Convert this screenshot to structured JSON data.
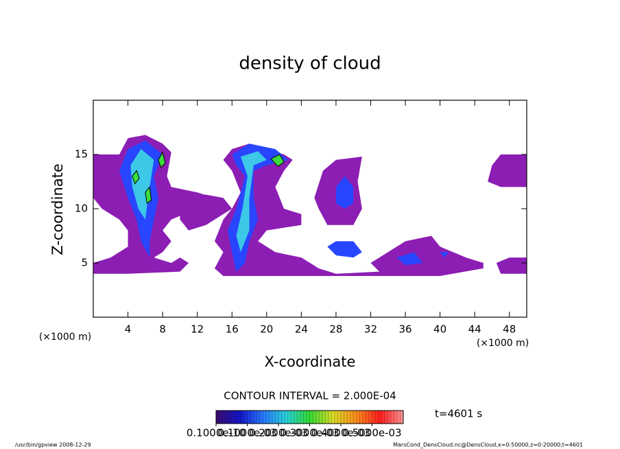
{
  "chart_data": {
    "type": "contour",
    "title": "density of cloud",
    "x_label": "X-coordinate",
    "y_label": "Z-coordinate",
    "x_unit": "(×1000 m)",
    "y_unit": "(×1000 m)",
    "xlim": [
      0,
      50
    ],
    "ylim": [
      0,
      20
    ],
    "xticks": [
      4,
      8,
      12,
      16,
      20,
      24,
      28,
      32,
      36,
      40,
      44,
      48
    ],
    "yticks": [
      5,
      10,
      15
    ],
    "contour_interval": "CONTOUR INTERVAL = 2.000E-04",
    "time": "t=4601 s",
    "colorbar": {
      "lim": [
        0,
        0.0006
      ],
      "colors": [
        "#3c0a6e",
        "#1414c8",
        "#2878ff",
        "#28d2dc",
        "#32dc32",
        "#dcdc28",
        "#ff8c1e",
        "#ff1e1e",
        "#ff9696"
      ],
      "ticks": [
        {
          "value": 1e-11,
          "label": "0.1000e-10"
        },
        {
          "value": 0.0001,
          "label": "0.1000e-03"
        },
        {
          "value": 0.0002,
          "label": "0.2000e-03"
        },
        {
          "value": 0.0003,
          "label": "0.3000e-03"
        },
        {
          "value": 0.0004,
          "label": "0.4000e-03"
        },
        {
          "value": 0.0005,
          "label": "0.5000e-03"
        }
      ]
    },
    "regions": [
      {
        "value": 5e-05,
        "color": "#8c1eb4",
        "x": [
          0,
          3,
          4,
          6,
          8,
          9,
          8.5,
          9,
          12,
          14,
          12,
          9,
          8,
          9,
          8,
          7,
          9,
          10,
          11,
          10,
          4,
          2,
          0,
          0,
          2,
          3,
          4,
          4,
          3,
          1,
          0
        ],
        "z": [
          15,
          15,
          16.5,
          16.8,
          16,
          15.2,
          13,
          12,
          11.5,
          11,
          10,
          9,
          8,
          7,
          6,
          5.5,
          5,
          5.5,
          5,
          4.2,
          4,
          4,
          4,
          5,
          5.5,
          6,
          6.5,
          8,
          9,
          10,
          11
        ]
      },
      {
        "value": 5e-05,
        "color": "#8c1eb4",
        "x": [
          10,
          13,
          15,
          16,
          13,
          11,
          10
        ],
        "z": [
          11,
          11.3,
          11,
          10,
          8.5,
          8,
          9
        ]
      },
      {
        "value": 5e-05,
        "color": "#8c1eb4",
        "x": [
          15,
          16,
          18,
          20,
          22,
          23,
          22,
          21,
          22,
          24,
          24,
          20,
          19,
          21,
          24,
          26,
          28,
          33,
          32,
          34,
          36,
          39,
          40,
          43,
          45,
          45,
          40,
          25,
          15,
          14,
          15,
          14,
          15,
          16,
          17,
          16
        ],
        "z": [
          14.5,
          15.5,
          16,
          15.5,
          15,
          14.5,
          13.5,
          12,
          10,
          9.5,
          8.5,
          8,
          7,
          6,
          5.5,
          4.5,
          4,
          4.2,
          5,
          6,
          7,
          7.5,
          6.5,
          5.5,
          5,
          4.5,
          3.8,
          3.8,
          3.8,
          4.5,
          6,
          7,
          9,
          10,
          11.5,
          13.5
        ]
      },
      {
        "value": 5e-05,
        "color": "#8c1eb4",
        "x": [
          26.5,
          28,
          31,
          30.5,
          31,
          30,
          27,
          26,
          25.5
        ],
        "z": [
          13.5,
          14.5,
          14.8,
          12.5,
          10,
          8.5,
          8.5,
          10,
          11
        ]
      },
      {
        "value": 5e-05,
        "color": "#8c1eb4",
        "x": [
          46,
          47,
          50,
          50,
          47,
          45.5
        ],
        "z": [
          14,
          15,
          15,
          12,
          12,
          12.5
        ]
      },
      {
        "value": 5e-05,
        "color": "#8c1eb4",
        "x": [
          47,
          50,
          50,
          48,
          46.5
        ],
        "z": [
          4,
          4,
          5.5,
          5.5,
          5
        ]
      },
      {
        "value": 0.00015,
        "color": "#2846ff",
        "x": [
          4,
          6,
          8,
          7,
          7.5,
          7,
          6.5,
          6.5,
          5.5,
          5,
          4,
          3
        ],
        "z": [
          15.5,
          16.3,
          15,
          13,
          11,
          9,
          7,
          5.5,
          7,
          9,
          11,
          13.5
        ]
      },
      {
        "value": 0.00015,
        "color": "#2846ff",
        "x": [
          16,
          18,
          21,
          22.5,
          20,
          18.5,
          18.5,
          19,
          18,
          17.5,
          16.5,
          16,
          15.5,
          16.5,
          17.5,
          16.5
        ],
        "z": [
          15,
          16,
          15.5,
          14.5,
          14,
          13.5,
          11,
          9,
          7,
          5,
          4.2,
          6,
          8,
          10,
          13,
          14
        ]
      },
      {
        "value": 0.00015,
        "color": "#2846ff",
        "x": [
          28,
          29,
          30,
          30,
          29,
          28
        ],
        "z": [
          12,
          13,
          12,
          10.5,
          10,
          10.5
        ]
      },
      {
        "value": 0.00015,
        "color": "#2846ff",
        "x": [
          27,
          28,
          30,
          31,
          30,
          28
        ],
        "z": [
          6.5,
          7,
          7,
          6,
          5.5,
          5.7
        ]
      },
      {
        "value": 0.00015,
        "color": "#2846ff",
        "x": [
          35,
          37,
          38,
          36
        ],
        "z": [
          5.5,
          6,
          5,
          4.8
        ]
      },
      {
        "value": 0.00015,
        "color": "#2846ff",
        "x": [
          40,
          41,
          40.5
        ],
        "z": [
          6,
          6,
          5.5
        ]
      },
      {
        "value": 0.00025,
        "color": "#3cc8e6",
        "x": [
          4.3,
          5.5,
          7,
          6.5,
          6,
          5.2,
          4.5
        ],
        "z": [
          14,
          15.5,
          14.5,
          12,
          9,
          10,
          12
        ]
      },
      {
        "value": 0.00025,
        "color": "#3cc8e6",
        "x": [
          17,
          19,
          20,
          18.5,
          18,
          18,
          17,
          16.5,
          17.2,
          17.8
        ],
        "z": [
          14.8,
          15.3,
          14.5,
          14,
          11,
          8,
          6,
          7.5,
          10,
          13
        ]
      },
      {
        "value": 0.0004,
        "color": "#3cdc3c",
        "x": [
          4.5,
          5,
          5.3,
          4.8
        ],
        "z": [
          13,
          13.5,
          12.8,
          12.3
        ]
      },
      {
        "value": 0.0004,
        "color": "#3cdc3c",
        "x": [
          7.5,
          8,
          8.3,
          7.8
        ],
        "z": [
          14.5,
          15.2,
          14.2,
          13.8
        ]
      },
      {
        "value": 0.0004,
        "color": "#3cdc3c",
        "x": [
          6,
          6.5,
          6.7,
          6.2
        ],
        "z": [
          11.5,
          12,
          10.8,
          10.5
        ]
      },
      {
        "value": 0.0004,
        "color": "#3cdc3c",
        "x": [
          20.5,
          21.5,
          22,
          21.3
        ],
        "z": [
          14.6,
          15,
          14.3,
          13.9
        ]
      }
    ],
    "footer_left": "/usr/bin/gpview   2008-12-29",
    "footer_right": "MarsCond_DensCloud.nc@DensCloud,x=0:50000,z=0:20000,t=4601"
  }
}
